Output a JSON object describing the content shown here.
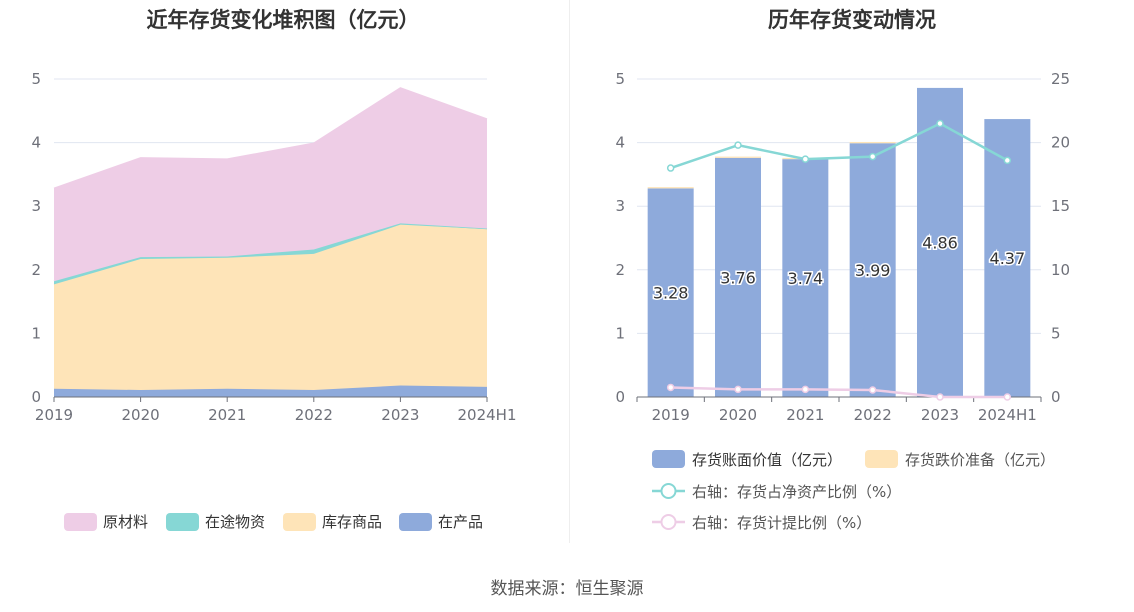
{
  "source": "数据来源：恒生聚源",
  "chart_data": [
    {
      "type": "area",
      "stacked": true,
      "title": "近年存货变化堆积图（亿元）",
      "categories": [
        "2019",
        "2020",
        "2021",
        "2022",
        "2023",
        "2024H1"
      ],
      "ylim": [
        0,
        5
      ],
      "yticks": [
        "0",
        "1",
        "2",
        "3",
        "4",
        "5"
      ],
      "grid": true,
      "legend_position": "bottom",
      "series": [
        {
          "name": "在产品",
          "color": "#8eaadb",
          "values": [
            0.13,
            0.11,
            0.13,
            0.11,
            0.18,
            0.16
          ]
        },
        {
          "name": "库存商品",
          "color": "#fee4b8",
          "values": [
            1.64,
            2.06,
            2.06,
            2.14,
            2.53,
            2.48
          ]
        },
        {
          "name": "在途物资",
          "color": "#86d7d5",
          "values": [
            0.05,
            0.03,
            0.02,
            0.07,
            0.02,
            0.01
          ]
        },
        {
          "name": "原材料",
          "color": "#eecde6",
          "values": [
            1.46,
            1.56,
            1.53,
            1.67,
            2.13,
            1.72
          ]
        }
      ],
      "legend_order": [
        "原材料",
        "在途物资",
        "库存商品",
        "在产品"
      ]
    },
    {
      "type": "bar",
      "title": "历年存货变动情况",
      "categories": [
        "2019",
        "2020",
        "2021",
        "2022",
        "2023",
        "2024H1"
      ],
      "ylim": [
        0,
        5
      ],
      "yticks": [
        "0",
        "1",
        "2",
        "3",
        "4",
        "5"
      ],
      "y2lim": [
        0,
        25
      ],
      "y2ticks": [
        "0",
        "5",
        "10",
        "15",
        "20",
        "25"
      ],
      "grid": true,
      "legend_position": "bottom",
      "bars": [
        {
          "name": "存货账面价值（亿元）",
          "color": "#8eaadb",
          "values": [
            3.28,
            3.76,
            3.74,
            3.99,
            4.86,
            4.37
          ],
          "labels": [
            "3.28",
            "3.76",
            "3.74",
            "3.99",
            "4.86",
            "4.37"
          ]
        },
        {
          "name": "存货跌价准备（亿元）",
          "color": "#fee4b8",
          "values": [
            0.02,
            0.02,
            0.02,
            0.02,
            0.0,
            0.0
          ]
        }
      ],
      "lines": [
        {
          "name": "右轴：存货占净资产比例（%）",
          "color": "#86d7d5",
          "axis": "right",
          "values": [
            18.0,
            19.8,
            18.7,
            18.9,
            21.5,
            18.6
          ]
        },
        {
          "name": "右轴：存货计提比例（%）",
          "color": "#eecde6",
          "axis": "right",
          "values": [
            0.75,
            0.6,
            0.6,
            0.55,
            0.0,
            0.0
          ]
        }
      ]
    }
  ]
}
